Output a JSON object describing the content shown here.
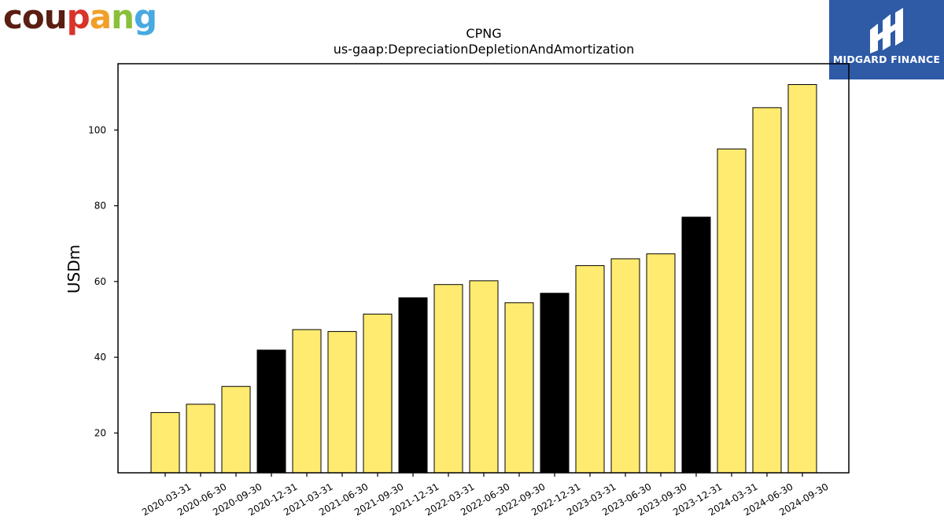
{
  "logos": {
    "left": {
      "letters": [
        "c",
        "o",
        "u",
        "p",
        "a",
        "n",
        "g"
      ],
      "colors": [
        "#5a1e12",
        "#5a1e12",
        "#5a1e12",
        "#d9332a",
        "#f0a028",
        "#8bbf3a",
        "#49a9e0"
      ]
    },
    "right": {
      "text": "MIDGARD FINANCE",
      "background": "#2e5aa6"
    }
  },
  "chart_data": {
    "type": "bar",
    "title": "CPNG",
    "subtitle": "us-gaap:DepreciationDepletionAndAmortization",
    "xlabel": "",
    "ylabel": "USDm",
    "ylim": [
      9.5,
      117.5
    ],
    "yticks": [
      20,
      40,
      60,
      80,
      100
    ],
    "grid": false,
    "categories": [
      "2020-03-31",
      "2020-06-30",
      "2020-09-30",
      "2020-12-31",
      "2021-03-31",
      "2021-06-30",
      "2021-09-30",
      "2021-12-31",
      "2022-03-31",
      "2022-06-30",
      "2022-09-30",
      "2022-12-31",
      "2023-03-31",
      "2023-06-30",
      "2023-09-30",
      "2023-12-31",
      "2024-03-31",
      "2024-06-30",
      "2024-09-30"
    ],
    "values": [
      25.4,
      27.6,
      32.3,
      41.9,
      47.3,
      46.8,
      51.4,
      55.7,
      59.2,
      60.2,
      54.4,
      56.9,
      64.2,
      66.0,
      67.3,
      77.0,
      95.0,
      105.9,
      112.0
    ],
    "highlight": [
      "2020-12-31",
      "2021-12-31",
      "2022-12-31",
      "2023-12-31"
    ],
    "colors": {
      "bar": "#ffeb70",
      "highlight": "#000000",
      "edge": "#000000"
    }
  }
}
